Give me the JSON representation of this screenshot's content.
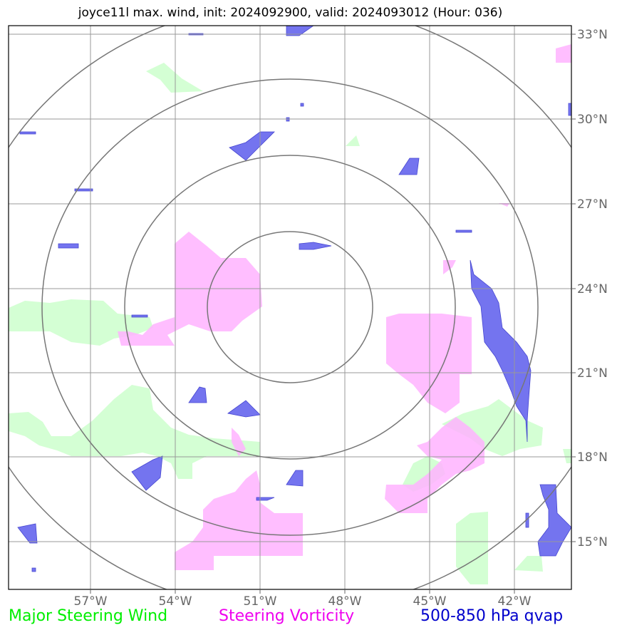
{
  "title": "joyce11l max. wind, init: 2024092900, valid: 2024093012 (Hour: 036)",
  "lon_ticks": [
    "57°W",
    "54°W",
    "51°W",
    "48°W",
    "45°W",
    "42°W"
  ],
  "lat_ticks": [
    "33°N",
    "30°N",
    "27°N",
    "24°N",
    "21°N",
    "18°N",
    "15°N"
  ],
  "legend": [
    {
      "label": "Major Steering Wind",
      "color": "#00ee00"
    },
    {
      "label": "Steering Vorticity",
      "color": "#ee00ee"
    },
    {
      "label": "500-850 hPa qvap",
      "color": "#0000cc"
    }
  ],
  "colors": {
    "wind_fill": "#ccffcc",
    "vorticity_fill": "#ffb3ff",
    "qvap_fill": "#6666ee",
    "grid": "#999999",
    "rings": "#777777"
  }
}
